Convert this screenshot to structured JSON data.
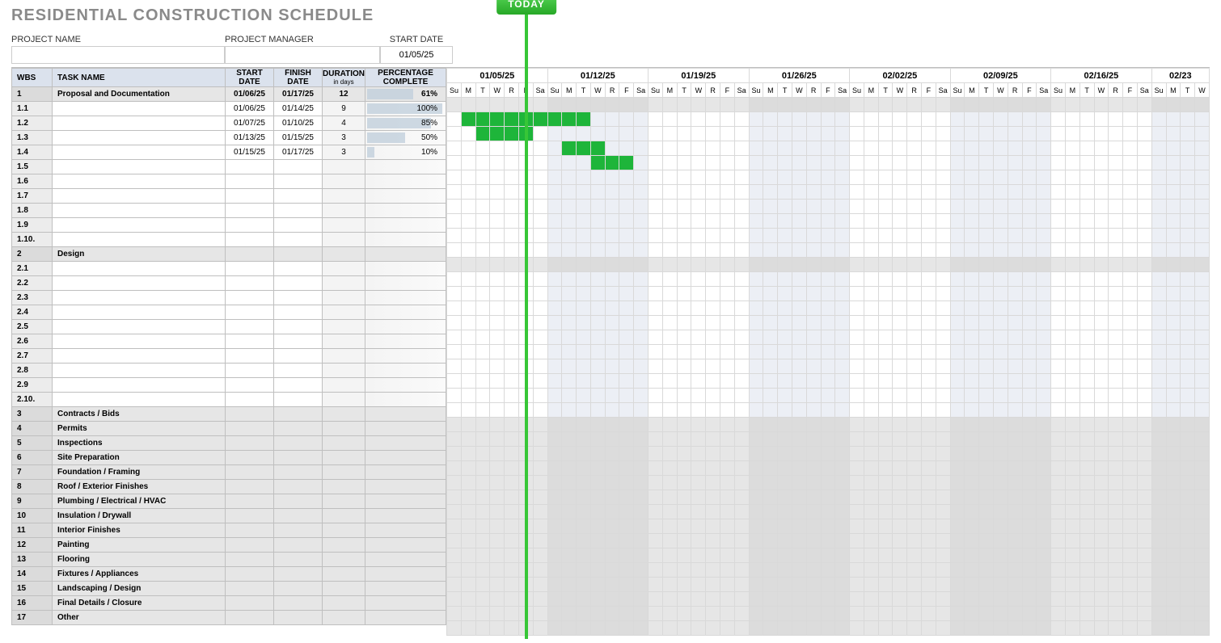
{
  "title": "RESIDENTIAL CONSTRUCTION SCHEDULE",
  "meta": {
    "project_name_label": "PROJECT NAME",
    "project_name_value": "",
    "project_manager_label": "PROJECT MANAGER",
    "project_manager_value": "",
    "start_date_label": "START DATE",
    "start_date_value": "01/05/25"
  },
  "today_label": "TODAY",
  "today_day_index": 5,
  "columns": {
    "wbs": "WBS",
    "task": "TASK NAME",
    "start": "START DATE",
    "finish": "FINISH DATE",
    "duration": "DURATION",
    "duration_sub": "in days",
    "pct": "PERCENTAGE COMPLETE"
  },
  "weeks": [
    {
      "label": "01/05/25",
      "days": [
        "Su",
        "M",
        "T",
        "W",
        "R",
        "F",
        "Sa"
      ]
    },
    {
      "label": "01/12/25",
      "days": [
        "Su",
        "M",
        "T",
        "W",
        "R",
        "F",
        "Sa"
      ]
    },
    {
      "label": "01/19/25",
      "days": [
        "Su",
        "M",
        "T",
        "W",
        "R",
        "F",
        "Sa"
      ]
    },
    {
      "label": "01/26/25",
      "days": [
        "Su",
        "M",
        "T",
        "W",
        "R",
        "F",
        "Sa"
      ]
    },
    {
      "label": "02/02/25",
      "days": [
        "Su",
        "M",
        "T",
        "W",
        "R",
        "F",
        "Sa"
      ]
    },
    {
      "label": "02/09/25",
      "days": [
        "Su",
        "M",
        "T",
        "W",
        "R",
        "F",
        "Sa"
      ]
    },
    {
      "label": "02/16/25",
      "days": [
        "Su",
        "M",
        "T",
        "W",
        "R",
        "F",
        "Sa"
      ]
    },
    {
      "label": "02/23",
      "days": [
        "Su",
        "M",
        "T",
        "W"
      ]
    }
  ],
  "weekend_bands": [
    [
      7,
      13
    ],
    [
      21,
      27
    ],
    [
      35,
      41
    ],
    [
      49,
      52
    ]
  ],
  "rows": [
    {
      "wbs": "1",
      "task": "Proposal and Documentation",
      "start": "01/06/25",
      "finish": "01/17/25",
      "dur": "12",
      "pct": 61,
      "section": true
    },
    {
      "wbs": "1.1",
      "task": "",
      "start": "01/06/25",
      "finish": "01/14/25",
      "dur": "9",
      "pct": 100,
      "bar": [
        1,
        9
      ]
    },
    {
      "wbs": "1.2",
      "task": "",
      "start": "01/07/25",
      "finish": "01/10/25",
      "dur": "4",
      "pct": 85,
      "bar": [
        2,
        5
      ]
    },
    {
      "wbs": "1.3",
      "task": "",
      "start": "01/13/25",
      "finish": "01/15/25",
      "dur": "3",
      "pct": 50,
      "bar": [
        8,
        10
      ]
    },
    {
      "wbs": "1.4",
      "task": "",
      "start": "01/15/25",
      "finish": "01/17/25",
      "dur": "3",
      "pct": 10,
      "bar": [
        10,
        12
      ]
    },
    {
      "wbs": "1.5",
      "task": "",
      "start": "",
      "finish": "",
      "dur": "",
      "pct": null
    },
    {
      "wbs": "1.6",
      "task": "",
      "start": "",
      "finish": "",
      "dur": "",
      "pct": null
    },
    {
      "wbs": "1.7",
      "task": "",
      "start": "",
      "finish": "",
      "dur": "",
      "pct": null
    },
    {
      "wbs": "1.8",
      "task": "",
      "start": "",
      "finish": "",
      "dur": "",
      "pct": null
    },
    {
      "wbs": "1.9",
      "task": "",
      "start": "",
      "finish": "",
      "dur": "",
      "pct": null
    },
    {
      "wbs": "1.10.",
      "task": "",
      "start": "",
      "finish": "",
      "dur": "",
      "pct": null
    },
    {
      "wbs": "2",
      "task": "Design",
      "start": "",
      "finish": "",
      "dur": "",
      "pct": null,
      "section": true
    },
    {
      "wbs": "2.1",
      "task": "",
      "start": "",
      "finish": "",
      "dur": "",
      "pct": null
    },
    {
      "wbs": "2.2",
      "task": "",
      "start": "",
      "finish": "",
      "dur": "",
      "pct": null
    },
    {
      "wbs": "2.3",
      "task": "",
      "start": "",
      "finish": "",
      "dur": "",
      "pct": null
    },
    {
      "wbs": "2.4",
      "task": "",
      "start": "",
      "finish": "",
      "dur": "",
      "pct": null
    },
    {
      "wbs": "2.5",
      "task": "",
      "start": "",
      "finish": "",
      "dur": "",
      "pct": null
    },
    {
      "wbs": "2.6",
      "task": "",
      "start": "",
      "finish": "",
      "dur": "",
      "pct": null
    },
    {
      "wbs": "2.7",
      "task": "",
      "start": "",
      "finish": "",
      "dur": "",
      "pct": null
    },
    {
      "wbs": "2.8",
      "task": "",
      "start": "",
      "finish": "",
      "dur": "",
      "pct": null
    },
    {
      "wbs": "2.9",
      "task": "",
      "start": "",
      "finish": "",
      "dur": "",
      "pct": null
    },
    {
      "wbs": "2.10.",
      "task": "",
      "start": "",
      "finish": "",
      "dur": "",
      "pct": null
    },
    {
      "wbs": "3",
      "task": "Contracts / Bids",
      "start": "",
      "finish": "",
      "dur": "",
      "pct": null,
      "section": true
    },
    {
      "wbs": "4",
      "task": "Permits",
      "start": "",
      "finish": "",
      "dur": "",
      "pct": null,
      "section": true
    },
    {
      "wbs": "5",
      "task": "Inspections",
      "start": "",
      "finish": "",
      "dur": "",
      "pct": null,
      "section": true
    },
    {
      "wbs": "6",
      "task": "Site Preparation",
      "start": "",
      "finish": "",
      "dur": "",
      "pct": null,
      "section": true
    },
    {
      "wbs": "7",
      "task": "Foundation / Framing",
      "start": "",
      "finish": "",
      "dur": "",
      "pct": null,
      "section": true
    },
    {
      "wbs": "8",
      "task": "Roof / Exterior Finishes",
      "start": "",
      "finish": "",
      "dur": "",
      "pct": null,
      "section": true
    },
    {
      "wbs": "9",
      "task": "Plumbing / Electrical / HVAC",
      "start": "",
      "finish": "",
      "dur": "",
      "pct": null,
      "section": true
    },
    {
      "wbs": "10",
      "task": "Insulation / Drywall",
      "start": "",
      "finish": "",
      "dur": "",
      "pct": null,
      "section": true
    },
    {
      "wbs": "11",
      "task": "Interior Finishes",
      "start": "",
      "finish": "",
      "dur": "",
      "pct": null,
      "section": true
    },
    {
      "wbs": "12",
      "task": "Painting",
      "start": "",
      "finish": "",
      "dur": "",
      "pct": null,
      "section": true
    },
    {
      "wbs": "13",
      "task": "Flooring",
      "start": "",
      "finish": "",
      "dur": "",
      "pct": null,
      "section": true
    },
    {
      "wbs": "14",
      "task": "Fixtures / Appliances",
      "start": "",
      "finish": "",
      "dur": "",
      "pct": null,
      "section": true
    },
    {
      "wbs": "15",
      "task": "Landscaping / Design",
      "start": "",
      "finish": "",
      "dur": "",
      "pct": null,
      "section": true
    },
    {
      "wbs": "16",
      "task": "Final Details / Closure",
      "start": "",
      "finish": "",
      "dur": "",
      "pct": null,
      "section": true
    },
    {
      "wbs": "17",
      "task": "Other",
      "start": "",
      "finish": "",
      "dur": "",
      "pct": null,
      "section": true
    }
  ],
  "colors": {
    "bar": "#1eb53a",
    "today": "#37c637",
    "header_bg": "#dbe2ed",
    "section_bg": "#e6e6e6",
    "weekend_bg": "#eceff5"
  }
}
